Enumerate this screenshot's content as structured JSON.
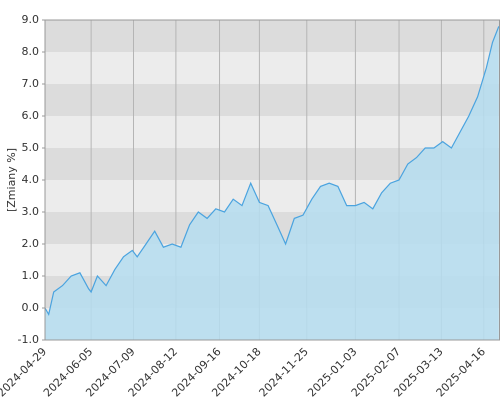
{
  "chart_data": {
    "type": "area",
    "y_label": "[Zmiany %]",
    "x": [
      "2024-04-29",
      "2024-05-02",
      "2024-05-06",
      "2024-05-13",
      "2024-05-20",
      "2024-05-27",
      "2024-06-03",
      "2024-06-05",
      "2024-06-10",
      "2024-06-17",
      "2024-06-24",
      "2024-07-01",
      "2024-07-08",
      "2024-07-12",
      "2024-07-19",
      "2024-07-26",
      "2024-08-02",
      "2024-08-09",
      "2024-08-16",
      "2024-08-23",
      "2024-08-30",
      "2024-09-06",
      "2024-09-13",
      "2024-09-20",
      "2024-09-27",
      "2024-10-04",
      "2024-10-11",
      "2024-10-18",
      "2024-10-25",
      "2024-11-01",
      "2024-11-08",
      "2024-11-15",
      "2024-11-22",
      "2024-11-29",
      "2024-12-06",
      "2024-12-13",
      "2024-12-20",
      "2024-12-27",
      "2025-01-03",
      "2025-01-10",
      "2025-01-17",
      "2025-01-24",
      "2025-01-31",
      "2025-02-07",
      "2025-02-14",
      "2025-02-21",
      "2025-02-28",
      "2025-03-07",
      "2025-03-14",
      "2025-03-21",
      "2025-03-28",
      "2025-04-04",
      "2025-04-11",
      "2025-04-18",
      "2025-04-23",
      "2025-04-28"
    ],
    "values": [
      0.0,
      -0.2,
      0.5,
      0.7,
      1.0,
      1.1,
      0.6,
      0.5,
      1.0,
      0.7,
      1.2,
      1.6,
      1.8,
      1.6,
      2.0,
      2.4,
      1.9,
      2.0,
      1.9,
      2.6,
      3.0,
      2.8,
      3.1,
      3.0,
      3.4,
      3.2,
      3.9,
      3.3,
      3.2,
      2.6,
      2.0,
      2.8,
      2.9,
      3.4,
      3.8,
      3.9,
      3.8,
      3.2,
      3.2,
      3.3,
      3.1,
      3.6,
      3.9,
      4.0,
      4.5,
      4.7,
      5.0,
      5.0,
      5.2,
      5.0,
      5.5,
      6.0,
      6.6,
      7.5,
      8.3,
      8.8
    ],
    "line_color": "#4aa3df",
    "fill_color": "#b5ddf0",
    "xlim": [
      "2024-04-29",
      "2025-04-29"
    ],
    "xticks": [
      "2024-04-29",
      "2024-06-05",
      "2024-07-09",
      "2024-08-12",
      "2024-09-16",
      "2024-10-18",
      "2024-11-25",
      "2025-01-03",
      "2025-02-07",
      "2025-03-13",
      "2025-04-16"
    ],
    "ylim": [
      -1,
      9
    ],
    "yticks": [
      {
        "value": -1,
        "label": "-1.0"
      },
      {
        "value": 0,
        "label": "0.0"
      },
      {
        "value": 1,
        "label": "1.0"
      },
      {
        "value": 2,
        "label": "2.0"
      },
      {
        "value": 3,
        "label": "3.0"
      },
      {
        "value": 4,
        "label": "4.0"
      },
      {
        "value": 5,
        "label": "5.0"
      },
      {
        "value": 6,
        "label": "6.0"
      },
      {
        "value": 7,
        "label": "7.0"
      },
      {
        "value": 8,
        "label": "8.0"
      },
      {
        "value": 9,
        "label": "9.0"
      }
    ],
    "grid": true
  }
}
